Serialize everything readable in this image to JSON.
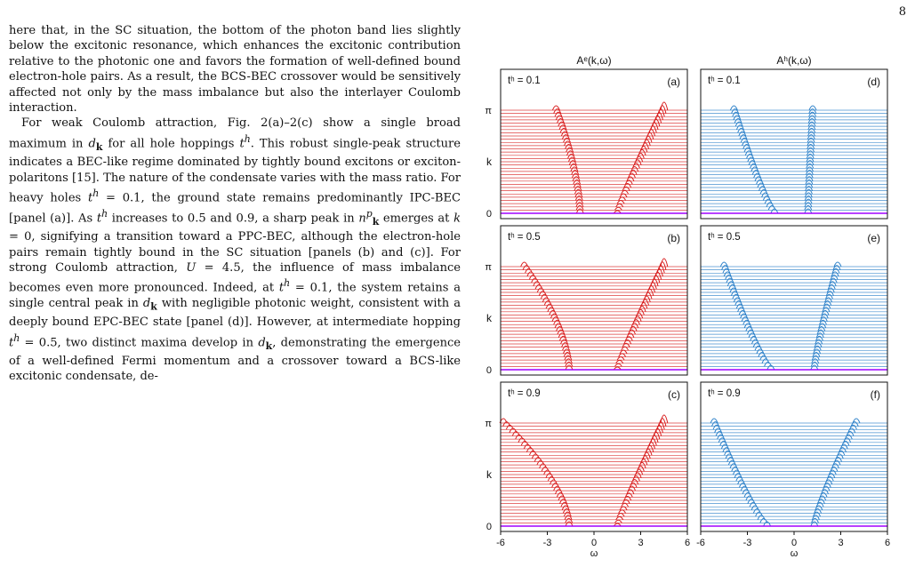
{
  "page_number": "8",
  "paragraphs": [
    "here that, in the SC situation, the bottom of the photon band lies slightly below the excitonic resonance, which enhances the excitonic contribution relative to the photonic one and favors the formation of well-defined bound electron-hole pairs. As a result, the BCS-BEC crossover would be sensitively affected not only by the mass imbalance but also the interlayer Coulomb interaction.",
    "For weak Coulomb attraction, Fig. 2(a)–2(c) show a single broad maximum in d_k for all hole hoppings t^h. This robust single-peak structure indicates a BEC-like regime dominated by tightly bound excitons or exciton-polaritons [15]. The nature of the condensate varies with the mass ratio. For heavy holes t^h = 0.1, the ground state remains predominantly IPC-BEC [panel (a)]. As t^h increases to 0.5 and 0.9, a sharp peak in n^p_k emerges at k = 0, signifying a transition toward a PPC-BEC, although the electron-hole pairs remain tightly bound in the SC situation [panels (b) and (c)]. For strong Coulomb attraction, U = 4.5, the influence of mass imbalance becomes even more pronounced. Indeed, at t^h = 0.1, the system retains a single central peak in d_k with negligible photonic weight, consistent with a deeply bound EPC-BEC state [panel (d)]. However, at intermediate hopping t^h = 0.5, two distinct maxima develop in d_k, demonstrating the emergence of a well-defined Fermi momentum and a crossover toward a BCS-like excitonic condensate, de-"
  ],
  "figure": {
    "col_titles": [
      "Aᵉ(k,ω)",
      "Aʰ(k,ω)"
    ],
    "xlabel": "ω",
    "ylabel": "k",
    "panels": [
      {
        "label": "(a)",
        "t": "tʰ = 0.1",
        "species": "e",
        "th": 0.1
      },
      {
        "label": "(d)",
        "t": "tʰ = 0.1",
        "species": "h",
        "th": 0.1
      },
      {
        "label": "(b)",
        "t": "tʰ = 0.5",
        "species": "e",
        "th": 0.5
      },
      {
        "label": "(e)",
        "t": "tʰ = 0.5",
        "species": "h",
        "th": 0.5
      },
      {
        "label": "(c)",
        "t": "tʰ = 0.9",
        "species": "e",
        "th": 0.9
      },
      {
        "label": "(f)",
        "t": "tʰ = 0.9",
        "species": "h",
        "th": 0.9
      }
    ],
    "xticks": [
      "-6",
      "-3",
      "0",
      "3",
      "6"
    ],
    "yticks": [
      "0",
      "k",
      "π"
    ],
    "colors": {
      "electron": "#d81e1e",
      "hole": "#2a7fc8",
      "bottom": "#a000ff"
    }
  }
}
